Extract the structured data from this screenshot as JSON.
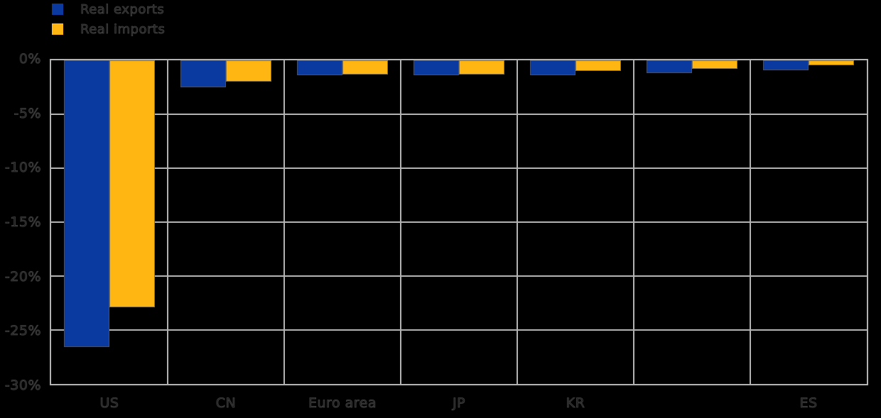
{
  "page": {
    "background": "#000000",
    "grid_color": "#b3b3b3",
    "text_color_faint": "#8c8c8c"
  },
  "legend": {
    "position": "top-left",
    "items": [
      {
        "label": "Real exports",
        "color": "#0a3aa0"
      },
      {
        "label": "Real imports",
        "color": "#ffb612"
      }
    ]
  },
  "chart_data": {
    "type": "bar",
    "title": "",
    "xlabel": "",
    "ylabel": "",
    "categories": [
      "US",
      "CN",
      "Euro area",
      "JP",
      "KR",
      "",
      "ES"
    ],
    "series": [
      {
        "name": "Real exports",
        "color": "#0a3aa0",
        "values": [
          -26.6,
          -2.5,
          -1.4,
          -1.4,
          -1.4,
          -1.2,
          -0.9
        ]
      },
      {
        "name": "Real imports",
        "color": "#ffb612",
        "values": [
          -22.9,
          -2.0,
          -1.3,
          -1.3,
          -1.0,
          -0.8,
          -0.45
        ]
      }
    ],
    "ylim": [
      -30,
      0
    ],
    "yticks": [
      {
        "value": 0,
        "label": "0%"
      },
      {
        "value": -5,
        "label": "-5%"
      },
      {
        "value": -10,
        "label": "-10%"
      },
      {
        "value": -15,
        "label": "-15%"
      },
      {
        "value": -20,
        "label": "-20%"
      },
      {
        "value": -25,
        "label": "-25%"
      },
      {
        "value": -30,
        "label": "-30%"
      }
    ],
    "grid": true,
    "legend_position": "top-left"
  }
}
